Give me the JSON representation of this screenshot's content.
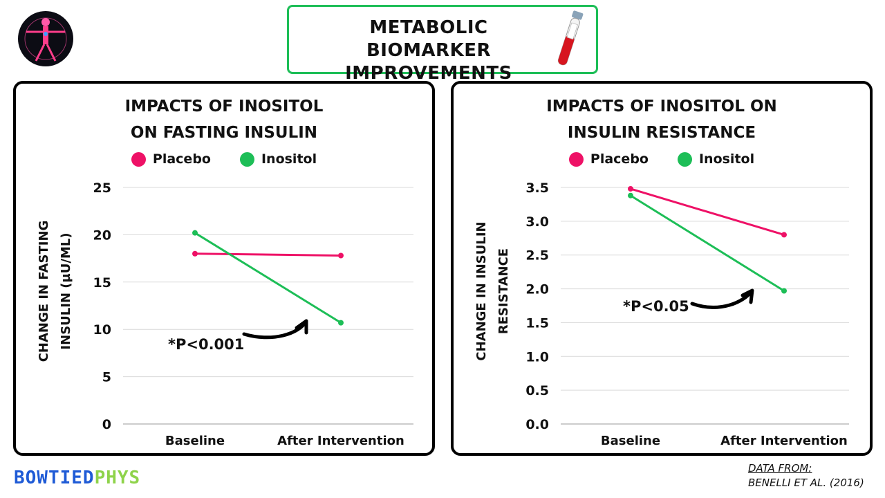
{
  "header": {
    "title_line1": "METABOLIC BIOMARKER",
    "title_line2": "IMPROVEMENTS"
  },
  "colors": {
    "placebo": "#ee1166",
    "inositol": "#1dbe57",
    "header_border": "#1dbe57",
    "brand_blue": "#1f5bd6",
    "brand_green": "#8ed34a"
  },
  "legend": {
    "placebo": "Placebo",
    "inositol": "Inositol"
  },
  "chart_data": [
    {
      "type": "line",
      "title_line1": "IMPACTS OF INOSITOL",
      "title_line2": "ON FASTING INSULIN",
      "ylabel_line1": "CHANGE IN FASTING",
      "ylabel_line2": "INSULIN (µU/ML)",
      "categories": [
        "Baseline",
        "After Intervention"
      ],
      "ylim": [
        0,
        25
      ],
      "yticks": [
        "0",
        "5",
        "10",
        "15",
        "20",
        "25"
      ],
      "series": [
        {
          "name": "Placebo",
          "values": [
            18.0,
            17.8
          ]
        },
        {
          "name": "Inositol",
          "values": [
            20.2,
            10.7
          ]
        }
      ],
      "annotation": "*P<0.001"
    },
    {
      "type": "line",
      "title_line1": "IMPACTS OF INOSITOL ON",
      "title_line2": "INSULIN RESISTANCE",
      "ylabel_line1": "CHANGE IN INSULIN",
      "ylabel_line2": "RESISTANCE",
      "categories": [
        "Baseline",
        "After Intervention"
      ],
      "ylim": [
        0,
        3.5
      ],
      "yticks": [
        "0.0",
        "0.5",
        "1.0",
        "1.5",
        "2.0",
        "2.5",
        "3.0",
        "3.5"
      ],
      "series": [
        {
          "name": "Placebo",
          "values": [
            3.48,
            2.8
          ]
        },
        {
          "name": "Inositol",
          "values": [
            3.38,
            1.97
          ]
        }
      ],
      "annotation": "*P<0.05"
    }
  ],
  "footer": {
    "brand_part1": "BOWTIED",
    "brand_part2": "PHYS",
    "source_line1": "DATA FROM:",
    "source_line2": "BENELLI ET AL. (2016)"
  }
}
